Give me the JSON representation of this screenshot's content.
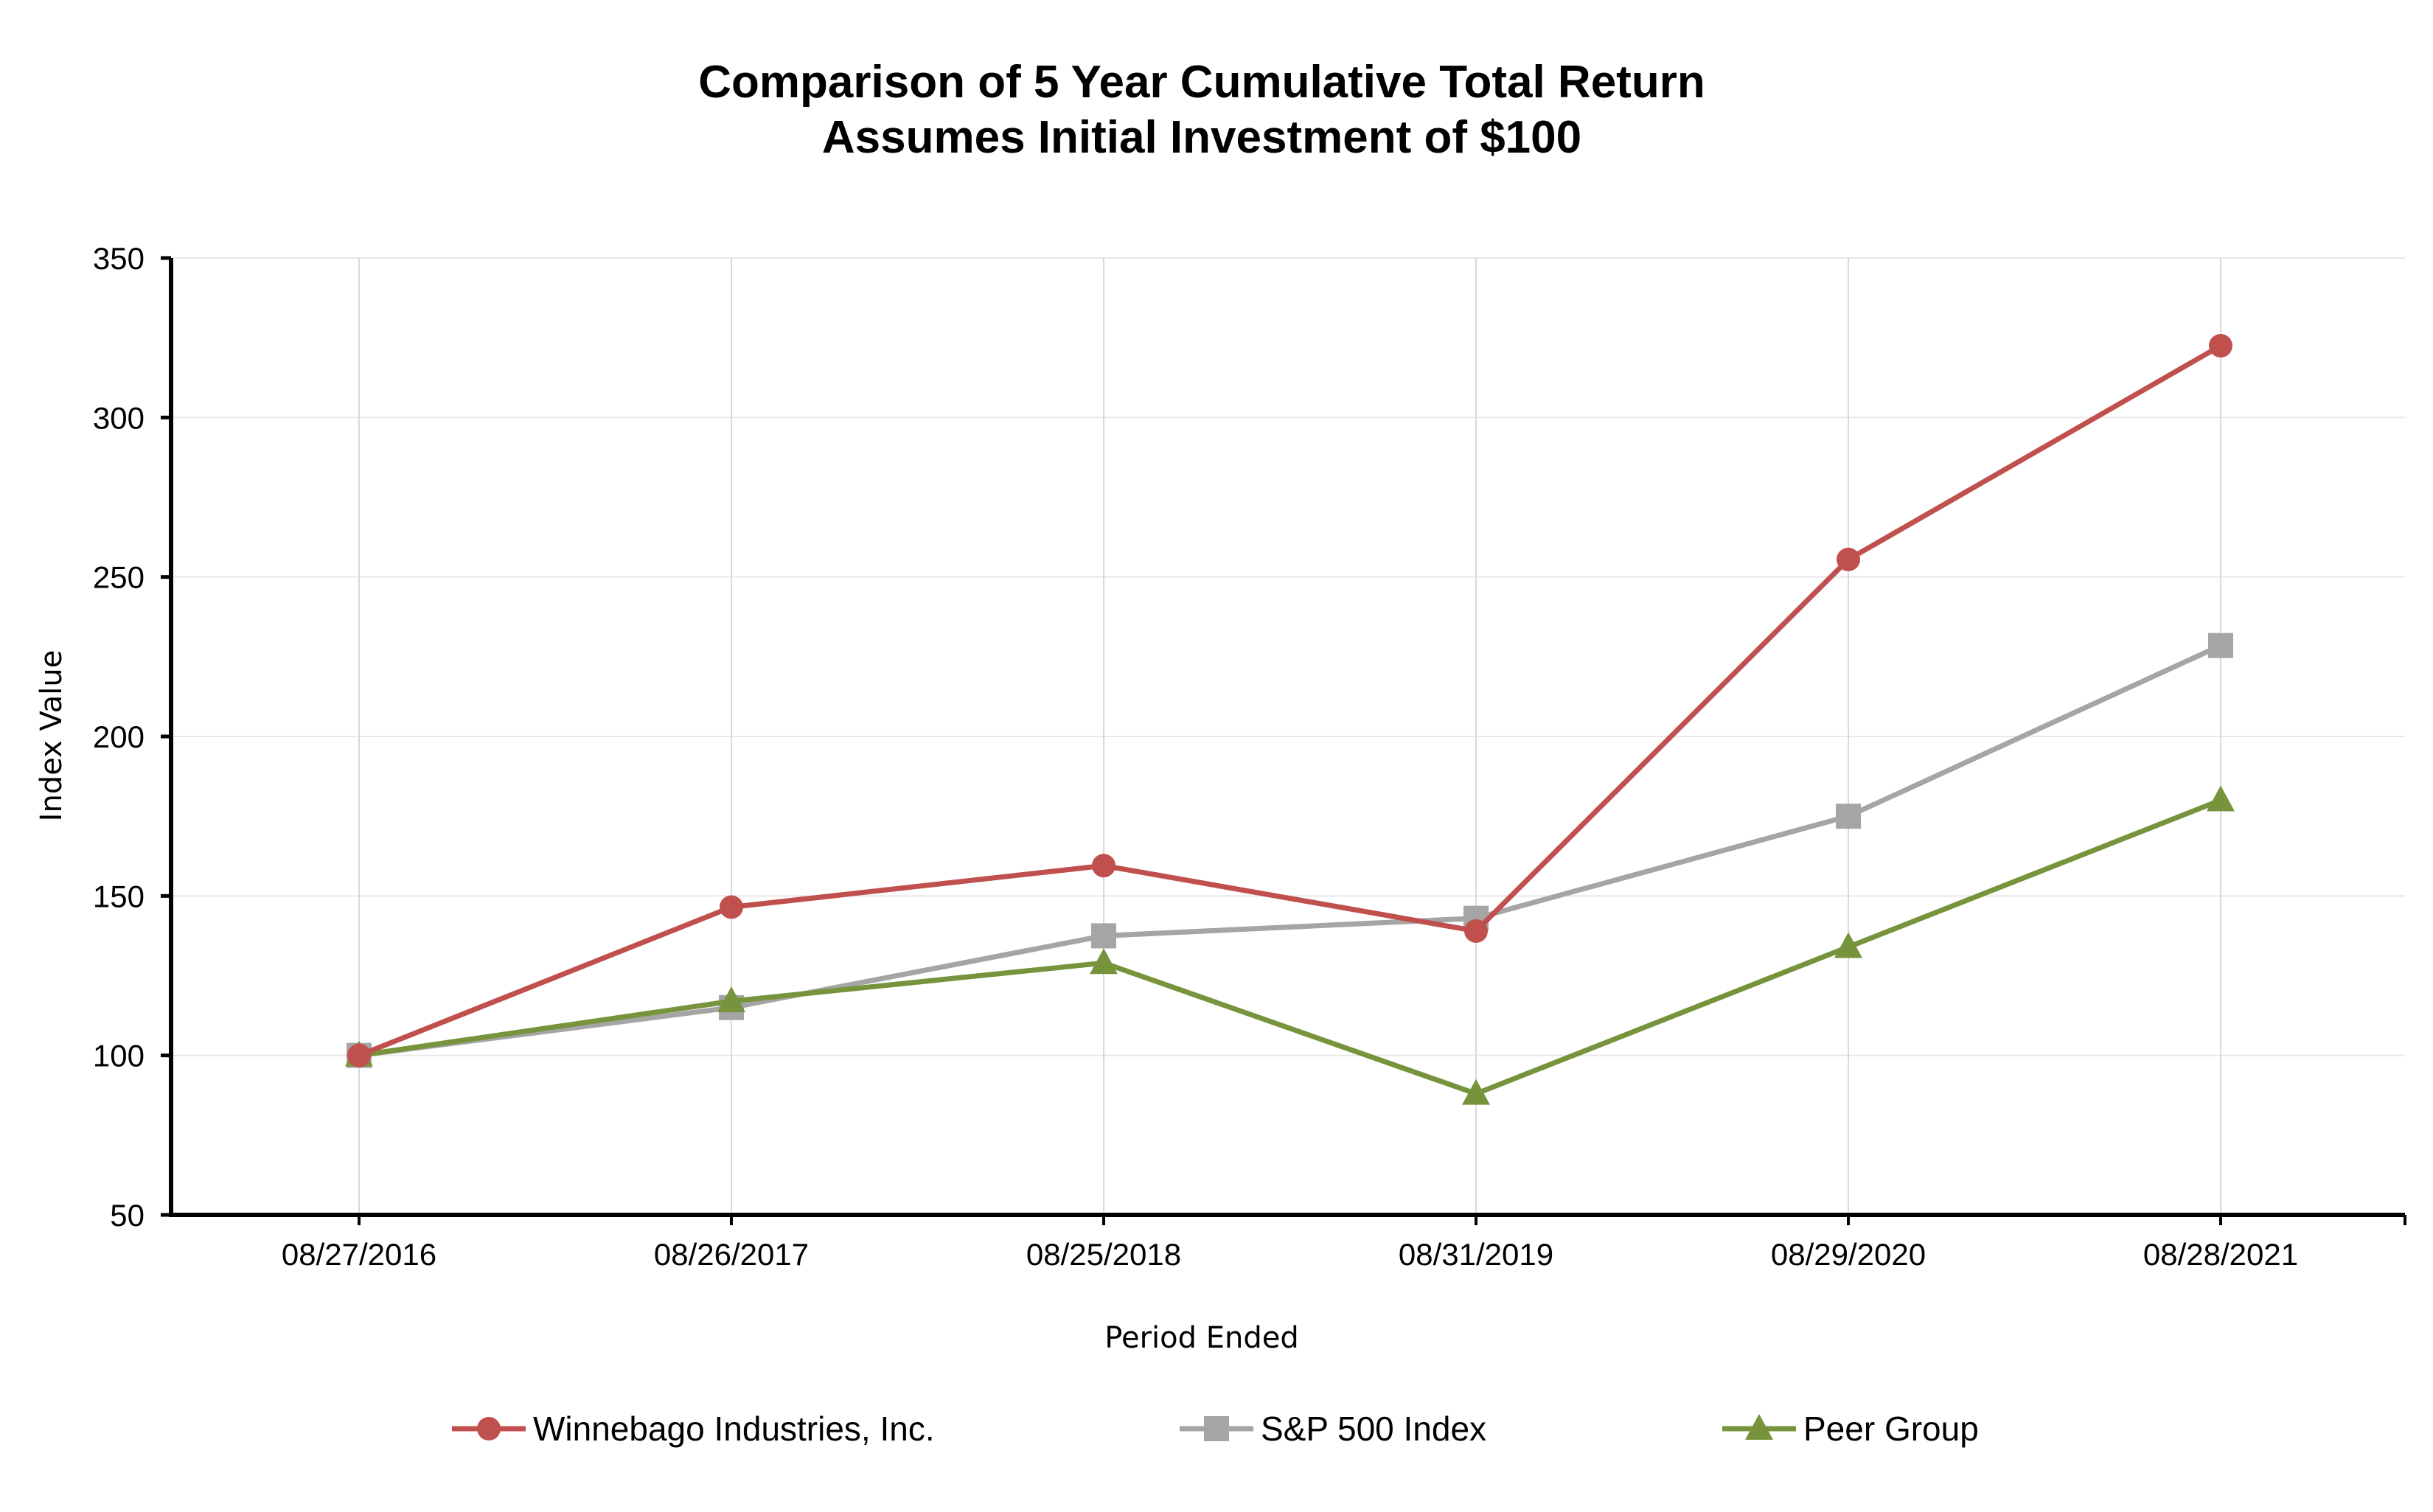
{
  "chart_data": {
    "type": "line",
    "title": "Comparison of 5 Year Cumulative Total Return",
    "subtitle": "Assumes Initial Investment of $100",
    "xlabel": "Period Ended",
    "ylabel": "Index Value",
    "categories": [
      "08/27/2016",
      "08/26/2017",
      "08/25/2018",
      "08/31/2019",
      "08/29/2020",
      "08/28/2021"
    ],
    "ylim": [
      50,
      350
    ],
    "yticks": [
      50,
      100,
      150,
      200,
      250,
      300,
      350
    ],
    "grid": true,
    "legend_position": "bottom",
    "series": [
      {
        "name": "Winnebago Industries, Inc.",
        "color": "#c0504d",
        "marker": "circle",
        "values": [
          100,
          146.5,
          159.5,
          139,
          255.5,
          322.5
        ]
      },
      {
        "name": "S&P 500 Index",
        "color": "#a5a5a5",
        "marker": "square",
        "values": [
          100,
          115,
          137.5,
          143,
          175,
          228.5
        ]
      },
      {
        "name": "Peer Group",
        "color": "#77933c",
        "marker": "triangle",
        "values": [
          100,
          117,
          129,
          88,
          134,
          180
        ]
      }
    ]
  }
}
